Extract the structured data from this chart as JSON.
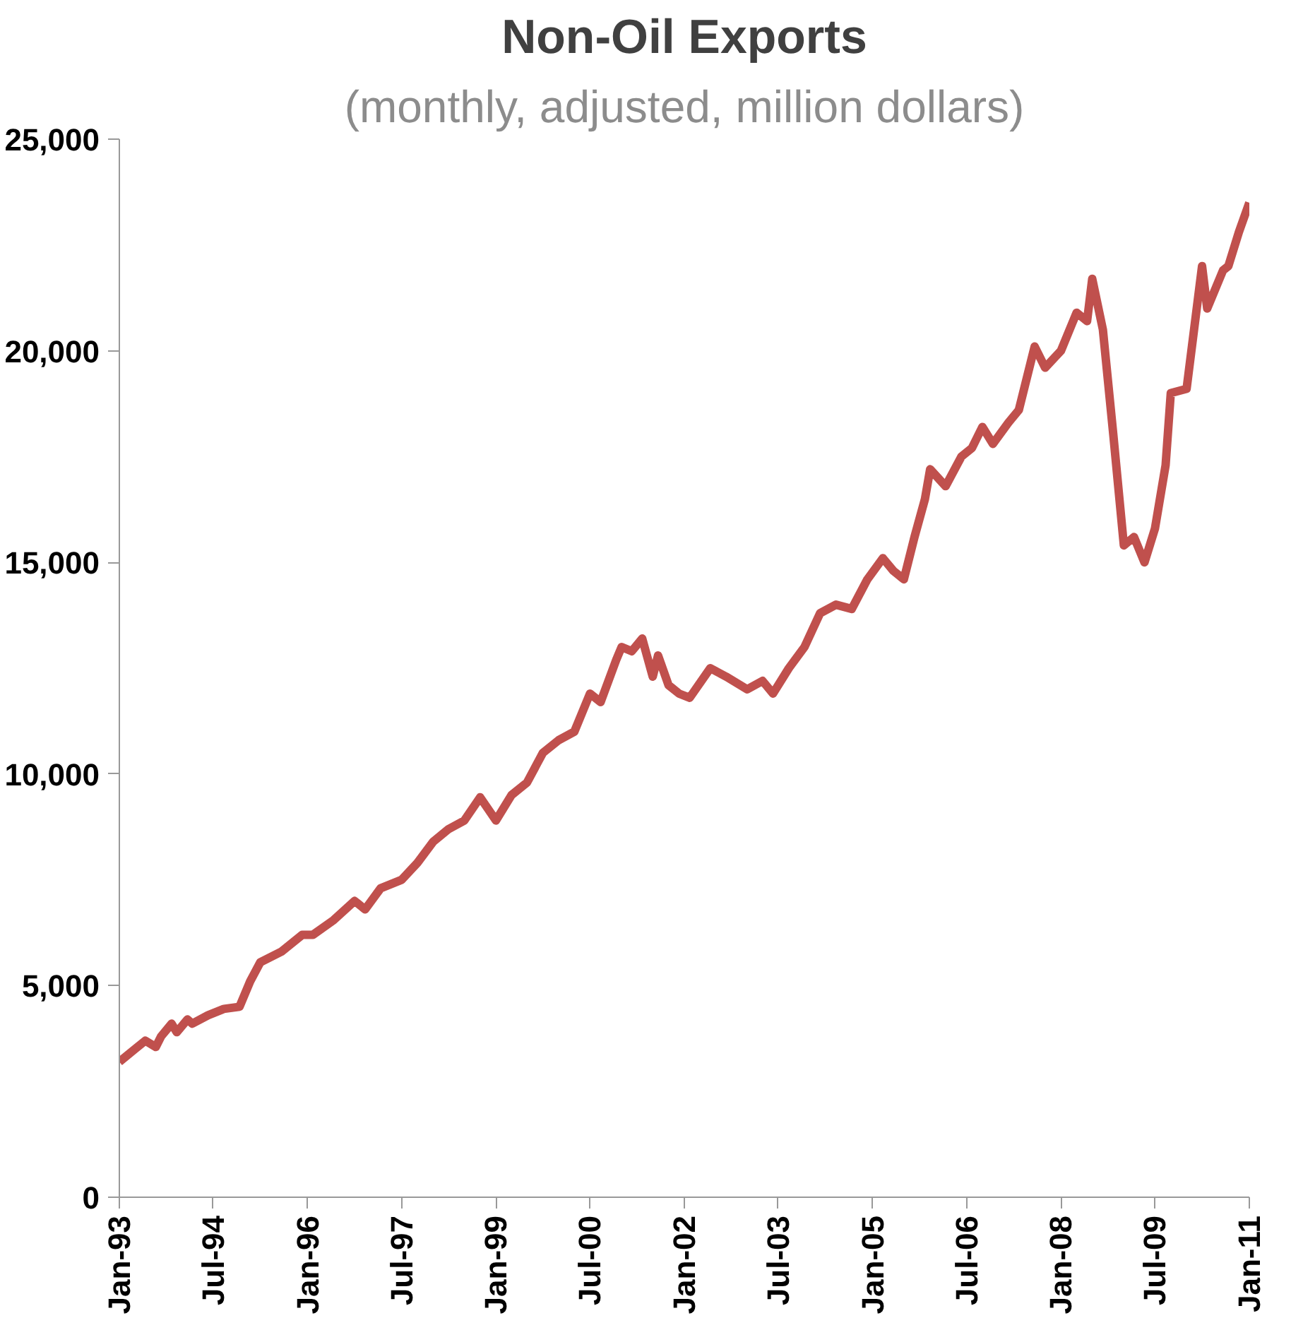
{
  "chart_data": {
    "type": "line",
    "title": "Non-Oil Exports",
    "subtitle": "(monthly, adjusted, million dollars)",
    "x": [
      "1993-01",
      "1993-04",
      "1993-06",
      "1993-08",
      "1993-09",
      "1993-11",
      "1993-12",
      "1994-02",
      "1994-03",
      "1994-06",
      "1994-09",
      "1994-12",
      "1995-02",
      "1995-04",
      "1995-08",
      "1995-12",
      "1996-02",
      "1996-06",
      "1996-10",
      "1996-12",
      "1997-03",
      "1997-07",
      "1997-10",
      "1998-01",
      "1998-04",
      "1998-07",
      "1998-10",
      "1999-01",
      "1999-04",
      "1999-07",
      "1999-10",
      "2000-01",
      "2000-04",
      "2000-07",
      "2000-09",
      "2000-12",
      "2001-01",
      "2001-03",
      "2001-05",
      "2001-07",
      "2001-08",
      "2001-10",
      "2001-12",
      "2002-02",
      "2002-06",
      "2002-09",
      "2003-01",
      "2003-04",
      "2003-06",
      "2003-09",
      "2003-12",
      "2004-03",
      "2004-06",
      "2004-09",
      "2004-12",
      "2005-03",
      "2005-05",
      "2005-07",
      "2005-09",
      "2005-11",
      "2005-12",
      "2006-03",
      "2006-06",
      "2006-08",
      "2006-10",
      "2006-12",
      "2007-03",
      "2007-05",
      "2007-08",
      "2007-10",
      "2008-01",
      "2008-04",
      "2008-06",
      "2008-07",
      "2008-09",
      "2008-11",
      "2009-01",
      "2009-03",
      "2009-05",
      "2009-07",
      "2009-09",
      "2009-10",
      "2010-01",
      "2010-04",
      "2010-05",
      "2010-08",
      "2010-09",
      "2010-11",
      "2011-01"
    ],
    "series": [
      {
        "color": "#c0504d",
        "values": [
          3200,
          3500,
          3700,
          3550,
          3800,
          4100,
          3900,
          4200,
          4100,
          4300,
          4450,
          4500,
          5100,
          5550,
          5800,
          6200,
          6200,
          6550,
          7000,
          6800,
          7300,
          7500,
          7900,
          8400,
          8700,
          8900,
          9450,
          8900,
          9500,
          9800,
          10500,
          10800,
          11000,
          11900,
          11700,
          12700,
          13000,
          12900,
          13200,
          12300,
          12800,
          12100,
          11900,
          11800,
          12500,
          12300,
          12000,
          12200,
          11900,
          12500,
          13000,
          13800,
          14000,
          13900,
          14600,
          15100,
          14800,
          14600,
          15600,
          16500,
          17200,
          16800,
          17500,
          17700,
          18200,
          17800,
          18300,
          18600,
          20100,
          19600,
          20000,
          20900,
          20700,
          21700,
          20500,
          18000,
          15400,
          15600,
          15000,
          15800,
          17300,
          19000,
          19100,
          22000,
          21000,
          21900,
          22000,
          22800,
          23500
        ]
      }
    ],
    "ylim": [
      0,
      25000
    ],
    "yticks": [
      {
        "value": 0,
        "label": "0"
      },
      {
        "value": 5000,
        "label": "5,000"
      },
      {
        "value": 10000,
        "label": "10,000"
      },
      {
        "value": 15000,
        "label": "15,000"
      },
      {
        "value": 20000,
        "label": "20,000"
      },
      {
        "value": 25000,
        "label": "25,000"
      }
    ],
    "xlim": [
      "1993-01",
      "2011-01"
    ],
    "xticks": [
      {
        "value": "1993-01",
        "label": "Jan-93"
      },
      {
        "value": "1994-07",
        "label": "Jul-94"
      },
      {
        "value": "1996-01",
        "label": "Jan-96"
      },
      {
        "value": "1997-07",
        "label": "Jul-97"
      },
      {
        "value": "1999-01",
        "label": "Jan-99"
      },
      {
        "value": "2000-07",
        "label": "Jul-00"
      },
      {
        "value": "2002-01",
        "label": "Jan-02"
      },
      {
        "value": "2003-07",
        "label": "Jul-03"
      },
      {
        "value": "2005-01",
        "label": "Jan-05"
      },
      {
        "value": "2006-07",
        "label": "Jul-06"
      },
      {
        "value": "2008-01",
        "label": "Jan-08"
      },
      {
        "value": "2009-07",
        "label": "Jul-09"
      },
      {
        "value": "2011-01",
        "label": "Jan-11"
      }
    ],
    "grid": false,
    "marker": "none",
    "line_style": "solid"
  }
}
